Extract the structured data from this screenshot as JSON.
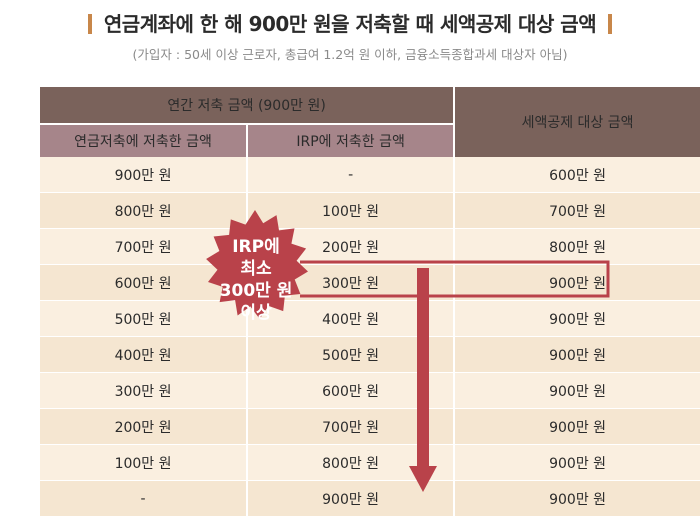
{
  "header": {
    "title": "연금계좌에 한 해 900만 원을 저축할 때 세액공제 대상 금액",
    "subtitle": "(가입자 : 50세 이상 근로자, 총급여 1.2억 원 이하, 금융소득종합과세 대상자 아님)"
  },
  "table": {
    "group_header": "연간 저축 금액 (900만 원)",
    "columns": [
      "연금저축에 저축한 금액",
      "IRP에 저축한 금액",
      "세액공제 대상 금액"
    ],
    "rows": [
      [
        "900만 원",
        "-",
        "600만 원"
      ],
      [
        "800만 원",
        "100만 원",
        "700만 원"
      ],
      [
        "700만 원",
        "200만 원",
        "800만 원"
      ],
      [
        "600만 원",
        "300만 원",
        "900만 원"
      ],
      [
        "500만 원",
        "400만 원",
        "900만 원"
      ],
      [
        "400만 원",
        "500만 원",
        "900만 원"
      ],
      [
        "300만 원",
        "600만 원",
        "900만 원"
      ],
      [
        "200만 원",
        "700만 원",
        "900만 원"
      ],
      [
        "100만 원",
        "800만 원",
        "900만 원"
      ],
      [
        "-",
        "900만 원",
        "900만 원"
      ]
    ]
  },
  "badge": {
    "lines": [
      "IRP에",
      "최소",
      "300만 원",
      "이상"
    ]
  },
  "colors": {
    "header_dark": "#7a625b",
    "header_sub": "#a6858a",
    "row_light": "#faefe0",
    "row_alt": "#f5e6d1",
    "accent_red": "#b9424a",
    "title_bar": "#c8874a"
  }
}
